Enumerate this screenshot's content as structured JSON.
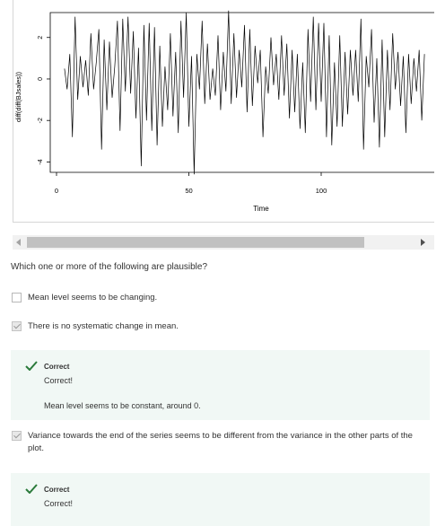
{
  "chart_data": {
    "type": "line",
    "ylabel": "diff(diff(BJsales))",
    "xlabel": "Time",
    "x_ticks": [
      "0",
      "50",
      "100"
    ],
    "y_ticks": [
      "-4",
      "-2",
      "0",
      "2"
    ],
    "ylim": [
      -4.5,
      3.2
    ],
    "xlim_visible": [
      0,
      140
    ],
    "x_start": 3,
    "values": [
      0.5,
      -0.5,
      1.2,
      -2.8,
      3.0,
      -1.0,
      1.1,
      -0.4,
      0.9,
      -0.8,
      2.2,
      -0.5,
      0.8,
      2.4,
      -3.4,
      1.9,
      -1.5,
      1.8,
      -0.9,
      0.6,
      2.8,
      -2.5,
      2.9,
      -0.6,
      3.0,
      -0.7,
      2.3,
      -1.9,
      1.5,
      -4.2,
      2.6,
      -2.0,
      2.7,
      -2.5,
      2.5,
      -3.2,
      1.6,
      -2.3,
      0.6,
      -1.5,
      2.2,
      -1.8,
      1.3,
      -2.6,
      2.8,
      -0.9,
      3.2,
      -2.3,
      1.1,
      -4.6,
      1.2,
      -0.5,
      2.8,
      -1.2,
      1.7,
      -1.0,
      0.5,
      -0.8,
      2.1,
      -1.5,
      1.3,
      -0.6,
      3.3,
      -1.2,
      2.2,
      -0.9,
      1.4,
      -0.4,
      2.6,
      -1.6,
      2.4,
      -1.3,
      1.6,
      -0.2,
      1.4,
      -2.8,
      0.6,
      -0.7,
      2.0,
      -0.3,
      1.2,
      -1.0,
      2.1,
      -0.8,
      1.7,
      -1.9,
      1.4,
      -1.6,
      1.2,
      -2.4,
      0.8,
      -2.6,
      2.4,
      -1.1,
      3.0,
      -1.5,
      2.7,
      -1.1,
      2.7,
      -2.8,
      2.1,
      -3.2,
      0.8,
      -2.3,
      2.1,
      -2.3,
      1.3,
      -1.7,
      1.4,
      -0.8,
      1.4,
      -1.1,
      2.9,
      -3.4,
      1.1,
      -0.4,
      2.4,
      -2.1,
      1.0,
      -3.3,
      1.9,
      -2.8,
      1.4,
      -1.5,
      2.2,
      -0.5,
      1.3,
      -1.3,
      1.1,
      -2.6,
      1.2,
      -1.2,
      1.0,
      -0.6,
      1.4,
      -2.0,
      1.2
    ]
  },
  "question": "Which one or more of the following are plausible?",
  "options": [
    {
      "label": "Mean level seems to be changing.",
      "checked": false
    },
    {
      "label": "There is no systematic change in mean.",
      "checked": true
    },
    {
      "label": "Variance towards the end of the series seems to be different from the variance in the other parts of the plot.",
      "checked": true
    }
  ],
  "feedback": [
    {
      "title": "Correct",
      "text": "Correct!",
      "explanation": "Mean level seems to be constant, around 0."
    },
    {
      "title": "Correct",
      "text": "Correct!"
    }
  ],
  "colors": {
    "line": "#000000",
    "feedback_bg": "#f1f8f5",
    "check": "#2a7a3a"
  }
}
